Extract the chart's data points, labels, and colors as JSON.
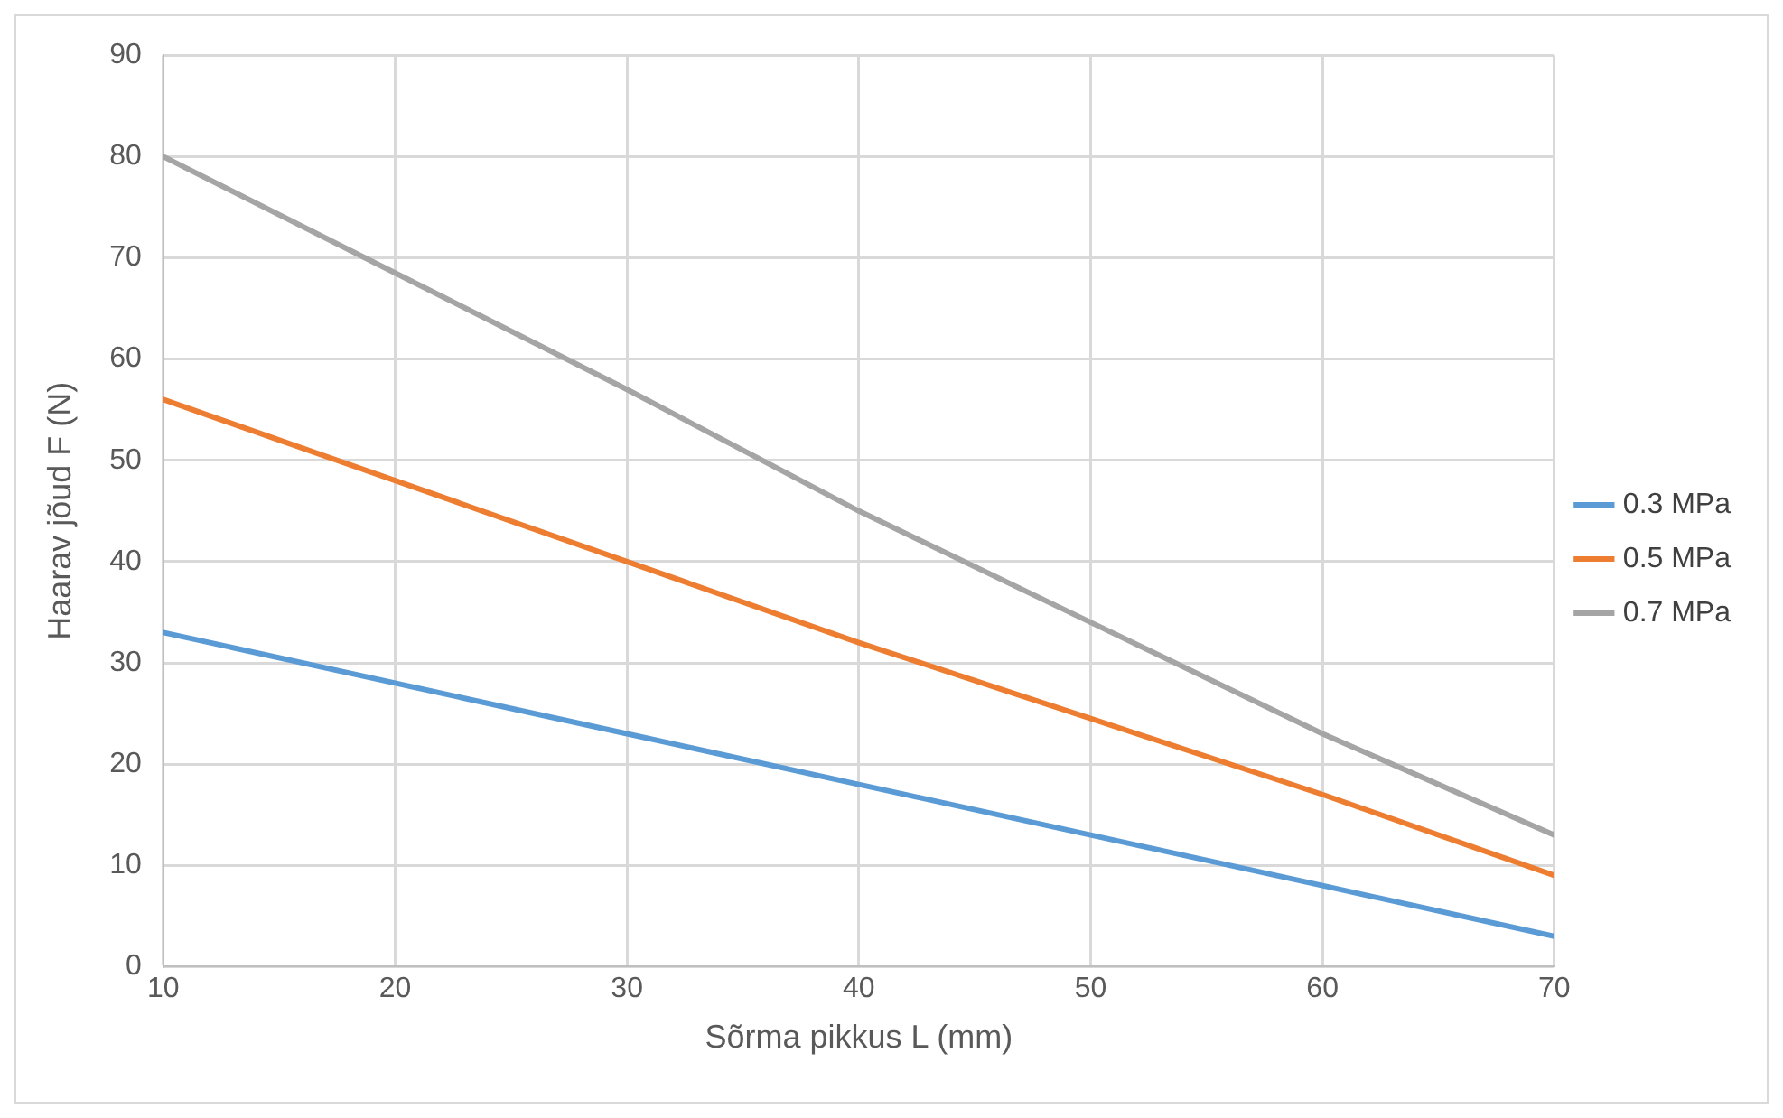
{
  "chart_data": {
    "type": "line",
    "xlabel": "Sõrma pikkus L (mm)",
    "ylabel": "Haarav jõud F (N)",
    "x": [
      10,
      20,
      30,
      40,
      50,
      60,
      70
    ],
    "series": [
      {
        "name": "0.3 MPa",
        "color": "#5b9bd5",
        "values": [
          33,
          28,
          23,
          18,
          13,
          8,
          3
        ]
      },
      {
        "name": "0.5 MPa",
        "color": "#ed7d31",
        "values": [
          56,
          48,
          40,
          32,
          24.5,
          17,
          9
        ]
      },
      {
        "name": "0.7 MPa",
        "color": "#a5a5a5",
        "values": [
          80,
          68.5,
          57,
          45,
          34,
          23,
          13
        ]
      }
    ],
    "xlim": [
      10,
      70
    ],
    "xticks": [
      10,
      20,
      30,
      40,
      50,
      60,
      70
    ],
    "ylim": [
      0,
      90
    ],
    "yticks": [
      0,
      10,
      20,
      30,
      40,
      50,
      60,
      70,
      80,
      90
    ],
    "grid": true,
    "legend": "right",
    "marker": "none",
    "line_style": "solid"
  }
}
